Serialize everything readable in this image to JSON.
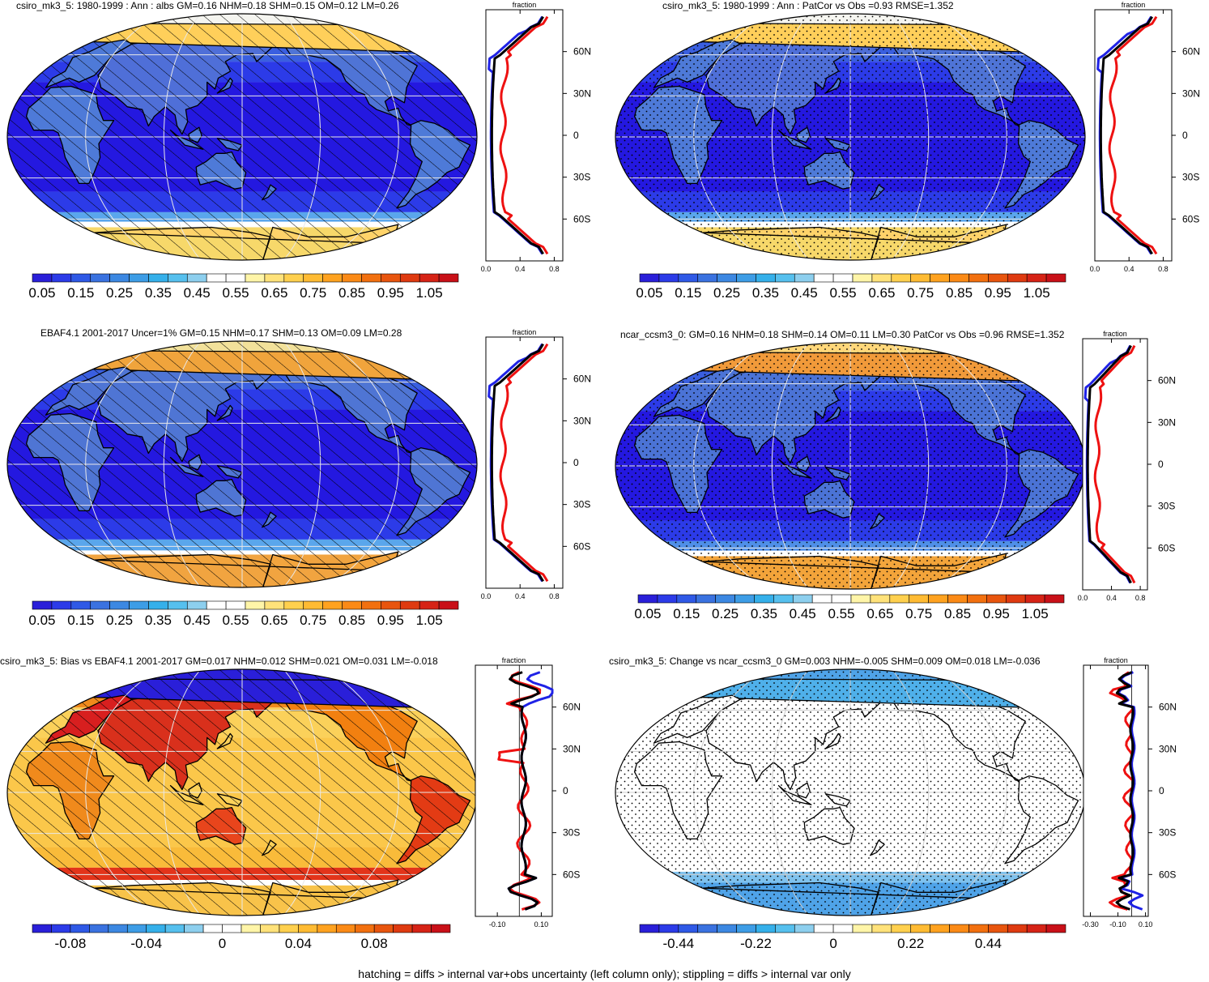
{
  "footer_note": "hatching = diffs > internal var+obs uncertainty (left column only); stippling = diffs > internal var only",
  "colors": {
    "absolute": [
      "#2a1fd9",
      "#2c3be8",
      "#2f59e6",
      "#3a72e0",
      "#3c88e2",
      "#3d9de6",
      "#35b0ea",
      "#56c0ee",
      "#8dcfee",
      "#ffffff",
      "#ffffff",
      "#fff5a8",
      "#ffe27a",
      "#ffd04e",
      "#ffbb33",
      "#ffa21f",
      "#fb8a16",
      "#f2700f",
      "#e8550e",
      "#df3a10",
      "#d62316",
      "#c91018"
    ],
    "diff": [
      "#2a1fd9",
      "#2c3be8",
      "#2f59e6",
      "#3a72e0",
      "#3c88e2",
      "#3d9de6",
      "#35b0ea",
      "#56c0ee",
      "#8dcfee",
      "#ffffff",
      "#ffffff",
      "#fff5a8",
      "#ffe27a",
      "#ffd04e",
      "#ffbb33",
      "#ffa21f",
      "#fb8a16",
      "#f2700f",
      "#e8550e",
      "#df3a10",
      "#d62316",
      "#c91018"
    ],
    "ocean_deep": "#2418e0",
    "ocean_mid": "#3a46ea",
    "land": "#4b73d6",
    "line_red": "#ee1111",
    "line_blue": "#1f22e6",
    "line_black": "#000000"
  },
  "panels": [
    {
      "title": "csiro_mk3_5: 1980-1999 : Ann : albs GM=0.16 NHM=0.18 SHM=0.15 OM=0.12 LM=0.26",
      "overlay": "hatch",
      "profile": {
        "title": "fraction",
        "xticks": [
          "0.0",
          "0.4",
          "0.8"
        ],
        "yticks": [
          "60N",
          "30N",
          "0",
          "30S",
          "60S"
        ],
        "xmin": 0.0,
        "xmax": 0.9
      },
      "colorbar": {
        "labels": [
          "0.05",
          "0.15",
          "0.25",
          "0.35",
          "0.45",
          "0.55",
          "0.65",
          "0.75",
          "0.85",
          "0.95",
          "1.05"
        ],
        "scale": "absolute"
      }
    },
    {
      "title": "csiro_mk3_5: 1980-1999 : Ann : PatCor vs Obs =0.93 RMSE=1.352",
      "overlay": "stipple",
      "profile": {
        "title": "fraction",
        "xticks": [
          "0.0",
          "0.4",
          "0.8"
        ],
        "yticks": [
          "60N",
          "30N",
          "0",
          "30S",
          "60S"
        ],
        "xmin": 0.0,
        "xmax": 0.9
      },
      "colorbar": {
        "labels": [
          "0.05",
          "0.15",
          "0.25",
          "0.35",
          "0.45",
          "0.55",
          "0.65",
          "0.75",
          "0.85",
          "0.95",
          "1.05"
        ],
        "scale": "absolute"
      }
    },
    {
      "title": "EBAF4.1 2001-2017 Uncer=1% GM=0.15 NHM=0.17 SHM=0.13 OM=0.09 LM=0.28",
      "overlay": "hatch",
      "profile": {
        "title": "fraction",
        "xticks": [
          "0.0",
          "0.4",
          "0.8"
        ],
        "yticks": [
          "60N",
          "30N",
          "0",
          "30S",
          "60S"
        ],
        "xmin": 0.0,
        "xmax": 0.9
      },
      "colorbar": {
        "labels": [
          "0.05",
          "0.15",
          "0.25",
          "0.35",
          "0.45",
          "0.55",
          "0.65",
          "0.75",
          "0.85",
          "0.95",
          "1.05"
        ],
        "scale": "absolute"
      }
    },
    {
      "title": "ncar_ccsm3_0: GM=0.16 NHM=0.18 SHM=0.14 OM=0.11 LM=0.30 PatCor vs Obs =0.96 RMSE=1.352",
      "overlay": "stipple",
      "profile": {
        "title": "fraction",
        "xticks": [
          "0.0",
          "0.4",
          "0.8"
        ],
        "yticks": [
          "60N",
          "30N",
          "0",
          "30S",
          "60S"
        ],
        "xmin": 0.0,
        "xmax": 0.9
      },
      "colorbar": {
        "labels": [
          "0.05",
          "0.15",
          "0.25",
          "0.35",
          "0.45",
          "0.55",
          "0.65",
          "0.75",
          "0.85",
          "0.95",
          "1.05"
        ],
        "scale": "absolute"
      }
    },
    {
      "title": "csiro_mk3_5: Bias vs EBAF4.1 2001-2017 GM=0.017 NHM=0.012 SHM=0.021 OM=0.031 LM=-0.018",
      "overlay": "hatch",
      "profile": {
        "title": "fraction",
        "xticks": [
          "-0.10",
          "0.10"
        ],
        "yticks": [
          "60N",
          "30N",
          "0",
          "30S",
          "60S"
        ],
        "xmin": -0.2,
        "xmax": 0.15
      },
      "colorbar": {
        "labels": [
          "-0.08",
          "-0.04",
          "0",
          "0.04",
          "0.08"
        ],
        "scale": "diff"
      }
    },
    {
      "title": "csiro_mk3_5: Change vs ncar_ccsm3_0 GM=0.003 NHM=-0.005 SHM=0.009 OM=0.018 LM=-0.036",
      "overlay": "stipple",
      "profile": {
        "title": "fraction",
        "xticks": [
          "-0.30",
          "-0.10",
          "0.10"
        ],
        "yticks": [
          "60N",
          "30N",
          "0",
          "30S",
          "60S"
        ],
        "xmin": -0.35,
        "xmax": 0.12
      },
      "colorbar": {
        "labels": [
          "-0.44",
          "-0.22",
          "0",
          "0.22",
          "0.44"
        ],
        "scale": "diff"
      }
    }
  ]
}
